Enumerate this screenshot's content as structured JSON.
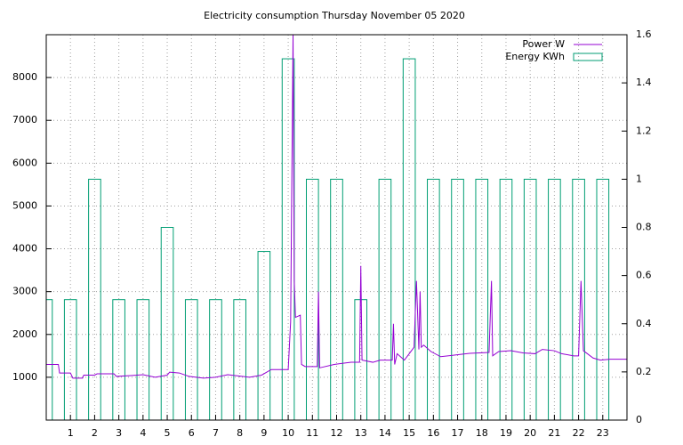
{
  "chart_data": {
    "type": "line",
    "title": "Electricity consumption Thursday November 05 2020",
    "xlim": [
      0,
      24
    ],
    "xticks": [
      1,
      2,
      3,
      4,
      5,
      6,
      7,
      8,
      9,
      10,
      11,
      12,
      13,
      14,
      15,
      16,
      17,
      18,
      19,
      20,
      21,
      22,
      23
    ],
    "ylim": [
      0,
      9000
    ],
    "yticks": [
      1000,
      2000,
      3000,
      4000,
      5000,
      6000,
      7000,
      8000
    ],
    "y2lim": [
      0,
      1.6
    ],
    "y2ticks": [
      0,
      0.2,
      0.4,
      0.6,
      0.8,
      1,
      1.2,
      1.4,
      1.6
    ],
    "grid": true,
    "legend": "top right",
    "series": [
      {
        "name": "Power W",
        "type": "line",
        "color": "#9400d3",
        "x": [
          0,
          0.5,
          0.55,
          1.0,
          1.1,
          1.5,
          1.55,
          2.0,
          2.1,
          2.8,
          2.9,
          3.5,
          4.0,
          4.5,
          5.0,
          5.1,
          5.5,
          5.9,
          6.5,
          7.0,
          7.5,
          8.4,
          8.9,
          9.3,
          10.0,
          10.1,
          10.2,
          10.25,
          10.3,
          10.5,
          10.55,
          10.7,
          11.2,
          11.25,
          11.3,
          11.9,
          12.6,
          12.95,
          13.0,
          13.05,
          13.5,
          13.8,
          14.3,
          14.35,
          14.4,
          14.5,
          14.8,
          15.2,
          15.3,
          15.4,
          15.45,
          15.5,
          15.6,
          15.9,
          16.3,
          16.9,
          17.5,
          18.3,
          18.4,
          18.45,
          18.7,
          19.2,
          19.7,
          20.2,
          20.5,
          21.0,
          21.3,
          21.8,
          22.0,
          22.1,
          22.2,
          22.6,
          22.9,
          23.3,
          24
        ],
        "values": [
          1300,
          1300,
          1100,
          1100,
          980,
          980,
          1050,
          1050,
          1080,
          1080,
          1020,
          1040,
          1060,
          1000,
          1050,
          1120,
          1100,
          1020,
          980,
          1000,
          1060,
          1000,
          1050,
          1180,
          1180,
          2300,
          9000,
          3250,
          2400,
          2450,
          1300,
          1250,
          1250,
          3000,
          1220,
          1300,
          1350,
          1350,
          3600,
          1400,
          1350,
          1400,
          1400,
          2250,
          1300,
          1550,
          1400,
          1700,
          3250,
          1650,
          3000,
          1700,
          1750,
          1600,
          1480,
          1520,
          1560,
          1580,
          3250,
          1500,
          1600,
          1620,
          1570,
          1550,
          1650,
          1620,
          1550,
          1500,
          1500,
          3250,
          1620,
          1450,
          1400,
          1420,
          1420
        ]
      },
      {
        "name": "Energy KWh",
        "type": "boxes",
        "axis": "y2",
        "color": "#009e73",
        "box_width": 0.5,
        "x": [
          0,
          1,
          2,
          3,
          4,
          5,
          6,
          7,
          8,
          9,
          10,
          11,
          12,
          13,
          14,
          15,
          16,
          17,
          18,
          19,
          20,
          21,
          22,
          23
        ],
        "values": [
          0.5,
          0.5,
          1,
          0.5,
          0.5,
          0.8,
          0.5,
          0.5,
          0.5,
          0.7,
          1.5,
          1,
          1,
          0.5,
          1,
          1.5,
          1,
          1,
          1,
          1,
          1,
          1,
          1,
          1
        ]
      }
    ]
  }
}
